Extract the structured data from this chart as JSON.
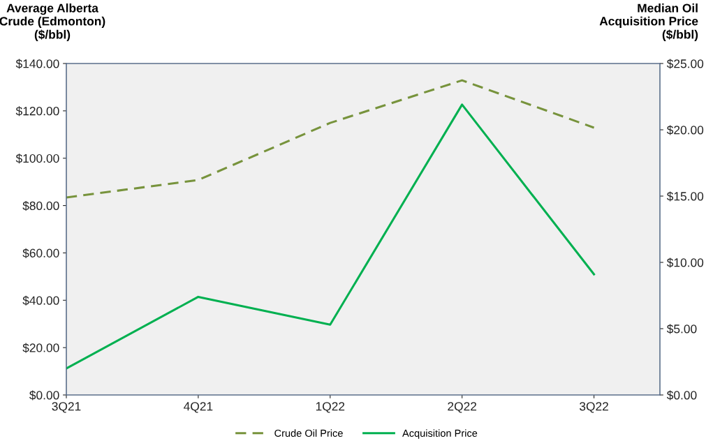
{
  "chart_data": {
    "type": "line",
    "ylabel": "Average Alberta\nCrude (Edmonton)\n($/bbl)",
    "y2label": "Median Oil\nAcquisition Price\n($/bbl)",
    "categories": [
      "3Q21",
      "4Q21",
      "1Q22",
      "2Q22",
      "3Q22"
    ],
    "series": [
      {
        "name": "Crude Oil Price",
        "color": "#77933c",
        "line_style": "dashed",
        "values": [
          83.4,
          90.8,
          114.9,
          132.9,
          112.9
        ]
      },
      {
        "name": "Acquisition Price",
        "color": "#00b050",
        "line_style": "solid",
        "axis": "y2",
        "values": [
          2.0,
          7.4,
          5.3,
          21.9,
          9.1
        ]
      }
    ],
    "ylim": [
      0,
      140
    ],
    "yticks": [
      {
        "value": 0,
        "label": "$0.00"
      },
      {
        "value": 20,
        "label": "$20.00"
      },
      {
        "value": 40,
        "label": "$40.00"
      },
      {
        "value": 60,
        "label": "$60.00"
      },
      {
        "value": 80,
        "label": "$80.00"
      },
      {
        "value": 100,
        "label": "$100.00"
      },
      {
        "value": 120,
        "label": "$120.00"
      },
      {
        "value": 140,
        "label": "$140.00"
      }
    ],
    "y2lim": [
      0,
      25
    ],
    "y2ticks": [
      {
        "value": 0,
        "label": "$0.00"
      },
      {
        "value": 5,
        "label": "$5.00"
      },
      {
        "value": 10,
        "label": "$10.00"
      },
      {
        "value": 15,
        "label": "$15.00"
      },
      {
        "value": 20,
        "label": "$20.00"
      },
      {
        "value": 25,
        "label": "$25.00"
      }
    ],
    "legend": "bottom",
    "grid": false,
    "marker": "none"
  }
}
